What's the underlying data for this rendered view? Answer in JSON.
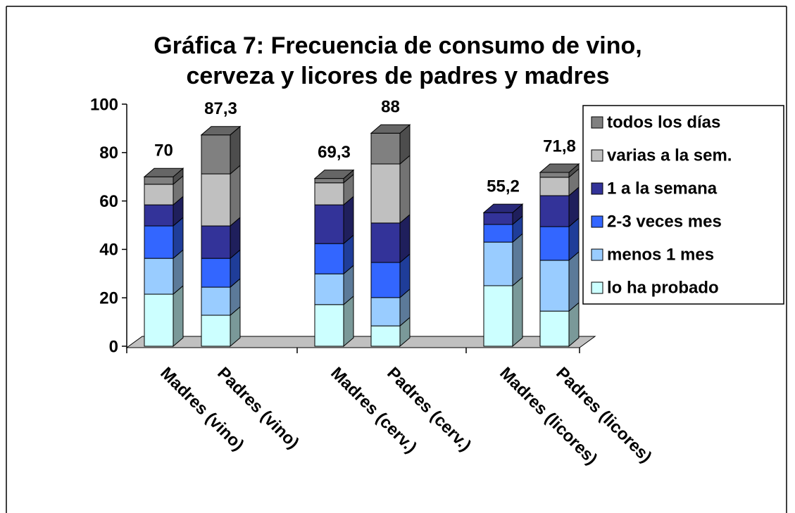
{
  "chart_data": {
    "type": "bar",
    "stacked": true,
    "title": [
      "Gráfica 7: Frecuencia de consumo de vino,",
      "cerveza y licores de padres y madres"
    ],
    "categories": [
      "Madres (vino)",
      "Padres (vino)",
      "Madres (cerv.)",
      "Padres (cerv.)",
      "Madres (licores)",
      "Padres (licores)"
    ],
    "series": [
      {
        "name": "lo ha probado",
        "color": "#ccffff",
        "values": [
          21.5,
          12.8,
          17.2,
          8.4,
          25,
          14.5
        ]
      },
      {
        "name": "menos  1 mes",
        "color": "#99ccff",
        "values": [
          14.8,
          11.6,
          12.7,
          11.7,
          18,
          21
        ]
      },
      {
        "name": "2-3 veces mes",
        "color": "#3366ff",
        "values": [
          13.4,
          11.9,
          12.5,
          14.5,
          7.3,
          13.9
        ]
      },
      {
        "name": "1 a la semana",
        "color": "#333399",
        "values": [
          8.7,
          13.4,
          16.0,
          16.3,
          4.9,
          12.8
        ]
      },
      {
        "name": "varias a la sem.",
        "color": "#c0c0c0",
        "values": [
          8.5,
          21.5,
          9.1,
          24.4,
          0,
          7.6
        ]
      },
      {
        "name": "todos los días",
        "color": "#808080",
        "values": [
          3.1,
          16.1,
          1.8,
          12.7,
          0,
          2.0
        ]
      }
    ],
    "totals": [
      70,
      87.3,
      69.3,
      88,
      55.2,
      71.8
    ],
    "total_labels": [
      "70",
      "87,3",
      "69,3",
      "88",
      "55,2",
      "71,8"
    ],
    "ylim": [
      0,
      100
    ],
    "yticks": [
      0,
      20,
      40,
      60,
      80,
      100
    ],
    "grid": false,
    "legend": "right"
  }
}
